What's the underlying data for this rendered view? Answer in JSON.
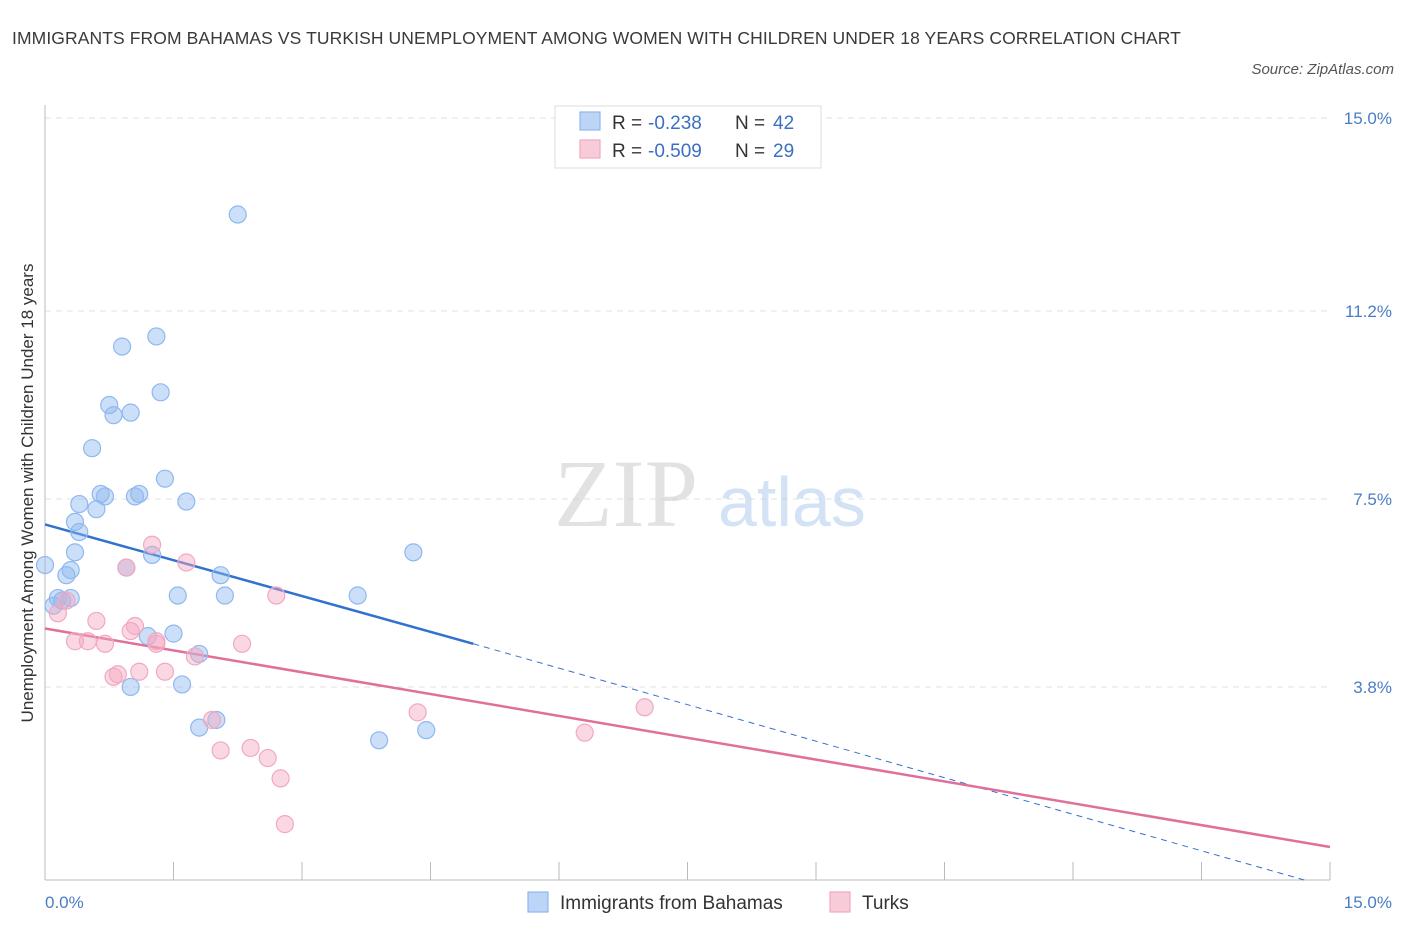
{
  "title": "IMMIGRANTS FROM BAHAMAS VS TURKISH UNEMPLOYMENT AMONG WOMEN WITH CHILDREN UNDER 18 YEARS CORRELATION CHART",
  "source": "Source: ZipAtlas.com",
  "watermark": {
    "zip": "ZIP",
    "atlas": "atlas"
  },
  "chart_data": {
    "type": "scatter",
    "ylabel": "Unemployment Among Women with Children Under 18 years",
    "xlim": [
      0,
      15
    ],
    "ylim": [
      0,
      15
    ],
    "x_tick_labels": [
      {
        "value": 0,
        "label": "0.0%"
      },
      {
        "value": 15,
        "label": "15.0%"
      }
    ],
    "y_tick_labels": [
      {
        "value": 3.8,
        "label": "3.8%"
      },
      {
        "value": 7.5,
        "label": "7.5%"
      },
      {
        "value": 11.2,
        "label": "11.2%"
      },
      {
        "value": 15,
        "label": "15.0%"
      }
    ],
    "grid": true,
    "legend_top": [
      {
        "r_label": "R =",
        "r_value": "-0.238",
        "n_label": "N =",
        "n_value": "42",
        "color": "#8fb8ef"
      },
      {
        "r_label": "R =",
        "r_value": "-0.509",
        "n_label": "N =",
        "n_value": "29",
        "color": "#f3a8c0"
      }
    ],
    "series": [
      {
        "name": "Immigrants from Bahamas",
        "color": "#8fb8ef",
        "line_color": "#3272cf",
        "trend": {
          "x0": 0,
          "y0": 7.0,
          "x1": 5.0,
          "y1": 4.65,
          "x_ext": 14.7,
          "y_ext": 0.0
        },
        "points": [
          [
            0.0,
            6.2
          ],
          [
            0.1,
            5.4
          ],
          [
            0.15,
            5.55
          ],
          [
            0.2,
            5.5
          ],
          [
            0.25,
            6.0
          ],
          [
            0.3,
            6.1
          ],
          [
            0.3,
            5.55
          ],
          [
            0.35,
            6.45
          ],
          [
            0.35,
            7.05
          ],
          [
            0.4,
            6.85
          ],
          [
            0.4,
            7.4
          ],
          [
            0.55,
            8.5
          ],
          [
            0.6,
            7.3
          ],
          [
            0.65,
            7.6
          ],
          [
            0.7,
            7.55
          ],
          [
            0.75,
            9.35
          ],
          [
            0.8,
            9.15
          ],
          [
            0.9,
            10.5
          ],
          [
            0.95,
            6.15
          ],
          [
            1.0,
            3.8
          ],
          [
            1.0,
            9.2
          ],
          [
            1.05,
            7.55
          ],
          [
            1.1,
            7.6
          ],
          [
            1.2,
            4.8
          ],
          [
            1.25,
            6.4
          ],
          [
            1.3,
            10.7
          ],
          [
            1.35,
            9.6
          ],
          [
            1.4,
            7.9
          ],
          [
            1.5,
            4.85
          ],
          [
            1.55,
            5.6
          ],
          [
            1.6,
            3.85
          ],
          [
            1.65,
            7.45
          ],
          [
            1.8,
            4.45
          ],
          [
            1.8,
            3.0
          ],
          [
            2.0,
            3.15
          ],
          [
            2.05,
            6.0
          ],
          [
            2.1,
            5.6
          ],
          [
            2.25,
            13.1
          ],
          [
            3.65,
            5.6
          ],
          [
            3.9,
            2.75
          ],
          [
            4.3,
            6.45
          ],
          [
            4.45,
            2.95
          ]
        ]
      },
      {
        "name": "Turks",
        "color": "#f3a8c0",
        "line_color": "#e0709a",
        "trend": {
          "x0": 0,
          "y0": 4.95,
          "x1": 15.0,
          "y1": 0.65
        },
        "points": [
          [
            0.15,
            5.25
          ],
          [
            0.25,
            5.5
          ],
          [
            0.35,
            4.7
          ],
          [
            0.5,
            4.7
          ],
          [
            0.6,
            5.1
          ],
          [
            0.7,
            4.65
          ],
          [
            0.8,
            4.0
          ],
          [
            0.85,
            4.05
          ],
          [
            0.95,
            6.15
          ],
          [
            1.0,
            4.9
          ],
          [
            1.05,
            5.0
          ],
          [
            1.1,
            4.1
          ],
          [
            1.25,
            6.6
          ],
          [
            1.3,
            4.7
          ],
          [
            1.3,
            4.65
          ],
          [
            1.4,
            4.1
          ],
          [
            1.65,
            6.25
          ],
          [
            1.75,
            4.4
          ],
          [
            1.95,
            3.15
          ],
          [
            2.05,
            2.55
          ],
          [
            2.3,
            4.65
          ],
          [
            2.4,
            2.6
          ],
          [
            2.6,
            2.4
          ],
          [
            2.7,
            5.6
          ],
          [
            2.75,
            2.0
          ],
          [
            2.8,
            1.1
          ],
          [
            4.35,
            3.3
          ],
          [
            6.3,
            2.9
          ],
          [
            7.0,
            3.4
          ]
        ]
      }
    ]
  }
}
